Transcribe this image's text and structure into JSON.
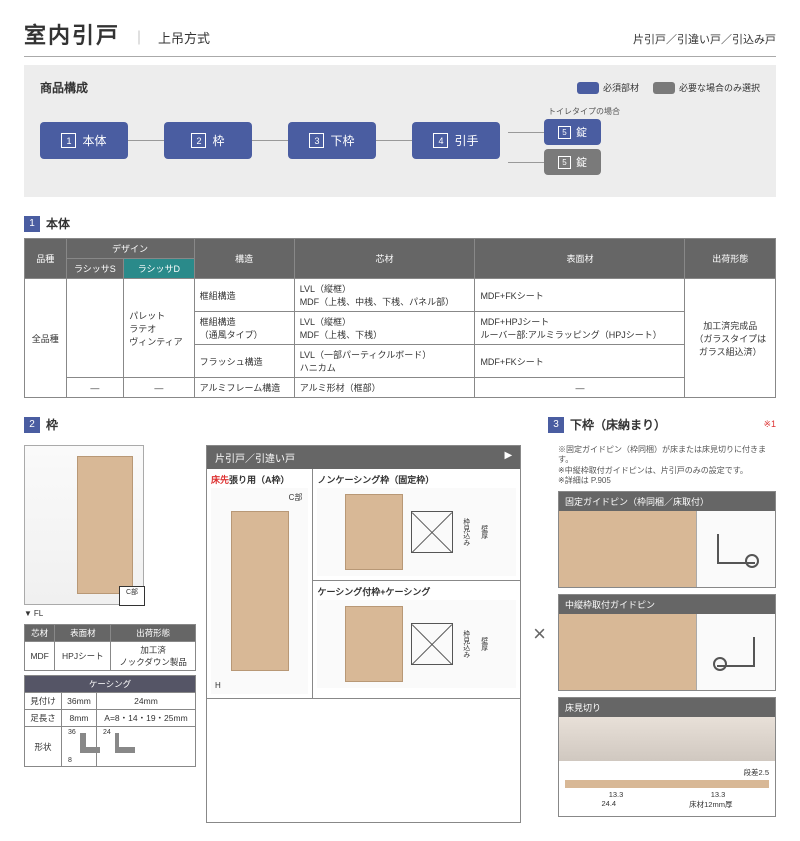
{
  "header": {
    "title": "室内引戸",
    "subtitle": "上吊方式",
    "right": "片引戸／引違い戸／引込み戸"
  },
  "composition": {
    "title": "商品構成",
    "legend_required": "必須部材",
    "legend_optional": "必要な場合のみ選択",
    "flow": [
      {
        "n": "1",
        "t": "本体"
      },
      {
        "n": "2",
        "t": "枠"
      },
      {
        "n": "3",
        "t": "下枠"
      },
      {
        "n": "4",
        "t": "引手"
      }
    ],
    "branch_label": "トイレタイプの場合",
    "branch": [
      {
        "n": "5",
        "t": "錠",
        "cls": "blue"
      },
      {
        "n": "5",
        "t": "錠",
        "cls": "gray"
      }
    ]
  },
  "sec1": {
    "n": "1",
    "t": "本体"
  },
  "table1": {
    "head": [
      "品種",
      "デザイン",
      "",
      "構造",
      "芯材",
      "表面材",
      "出荷形態"
    ],
    "sub": [
      "ラシッサS",
      "ラシッサD"
    ],
    "r1_kind": "全品種",
    "r1_design": "パレット\nラテオ\nヴィンティア",
    "rows": [
      {
        "kouzou": "框組構造",
        "shin": "LVL（縦框）\nMDF（上桟、中桟、下桟、パネル部）",
        "hyou": "MDF+FKシート"
      },
      {
        "kouzou": "框組構造\n（通風タイプ）",
        "shin": "LVL（縦框）\nMDF（上桟、下桟）",
        "hyou": "MDF+HPJシート\nルーバー部:アルミラッピング（HPJシート）"
      },
      {
        "kouzou": "フラッシュ構造",
        "shin": "LVL（一部パーティクルボード）\nハニカム",
        "hyou": "MDF+FKシート"
      },
      {
        "kouzou": "アルミフレーム構造",
        "shin": "アルミ形材（框部）",
        "hyou": "—",
        "dash": true
      }
    ],
    "ship": "加工済完成品\n（ガラスタイプは\nガラス組込済）"
  },
  "sec2": {
    "n": "2",
    "t": "枠"
  },
  "sec3": {
    "n": "3",
    "t": "下枠（床納まり）",
    "note": "※1"
  },
  "left": {
    "fl": "FL",
    "cb": "C部",
    "t_head": [
      "芯材",
      "表面材",
      "出荷形態"
    ],
    "t_row": [
      "MDF",
      "HPJシート",
      "加工済\nノックダウン製品"
    ],
    "casing": "ケーシング",
    "c_rows": [
      {
        "l": "見付け",
        "a": "36mm",
        "b": "24mm"
      },
      {
        "l": "足長さ",
        "a": "8mm",
        "b": "A=8・14・19・25mm"
      }
    ],
    "shape": "形状",
    "d36": "36",
    "d8": "8",
    "d24": "24"
  },
  "mid": {
    "head": "片引戸／引違い戸",
    "c1": "床先",
    "c1b": "張り用（A枠）",
    "c2": "ノンケーシング枠（固定枠）",
    "c3": "ケーシング付枠+ケーシング",
    "cb": "C部",
    "h": "H",
    "w": "壁厚",
    "kf": "枠見込み"
  },
  "right": {
    "notes": "※固定ガイドピン（枠同梱）が床または床見切りに付きます。\n※中縦枠取付ガイドピンは、片引戸のみの設定です。\n※詳細は P.905",
    "b1": "固定ガイドピン（枠同梱／床取付）",
    "b2": "中縦枠取付ガイドピン",
    "b3": "床見切り",
    "dan": "段差2.5",
    "d1": "13.3",
    "d2": "13.3",
    "d3": "24.4",
    "d4": "床材12mm厚"
  },
  "colors": {
    "primary": "#4a5da1",
    "gray": "#7a7a7a",
    "teal": "#2a8a8a",
    "wood": "#d8b896"
  }
}
